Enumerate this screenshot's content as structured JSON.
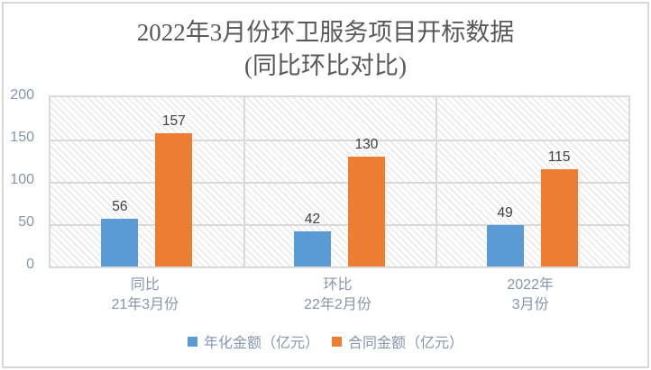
{
  "title": {
    "line1": "2022年3月份环卫服务项目开标数据",
    "line2": "(同比环比对比)"
  },
  "colors": {
    "series_blue": "#5b9bd5",
    "series_orange": "#ed7d31",
    "axis_text": "#8496b0",
    "data_label": "#404040",
    "gridline": "#d9d9d9",
    "title_text": "#595959"
  },
  "chart_data": {
    "type": "bar",
    "title": "2022年3月份环卫服务项目开标数据 (同比环比对比)",
    "categories": [
      [
        "同比",
        "21年3月份"
      ],
      [
        "环比",
        "22年2月份"
      ],
      [
        "2022年",
        "3月份"
      ]
    ],
    "series": [
      {
        "name": "年化金额（亿元）",
        "color": "#5b9bd5",
        "values": [
          56,
          42,
          49
        ]
      },
      {
        "name": "合同金额（亿元）",
        "color": "#ed7d31",
        "values": [
          157,
          130,
          115
        ]
      }
    ],
    "xlabel": "",
    "ylabel": "",
    "ylim": [
      0,
      200
    ],
    "yticks": [
      0,
      50,
      100,
      150,
      200
    ],
    "grid": true,
    "plot_background": "diagonal-hatch",
    "legend_position": "bottom",
    "data_labels": true
  }
}
